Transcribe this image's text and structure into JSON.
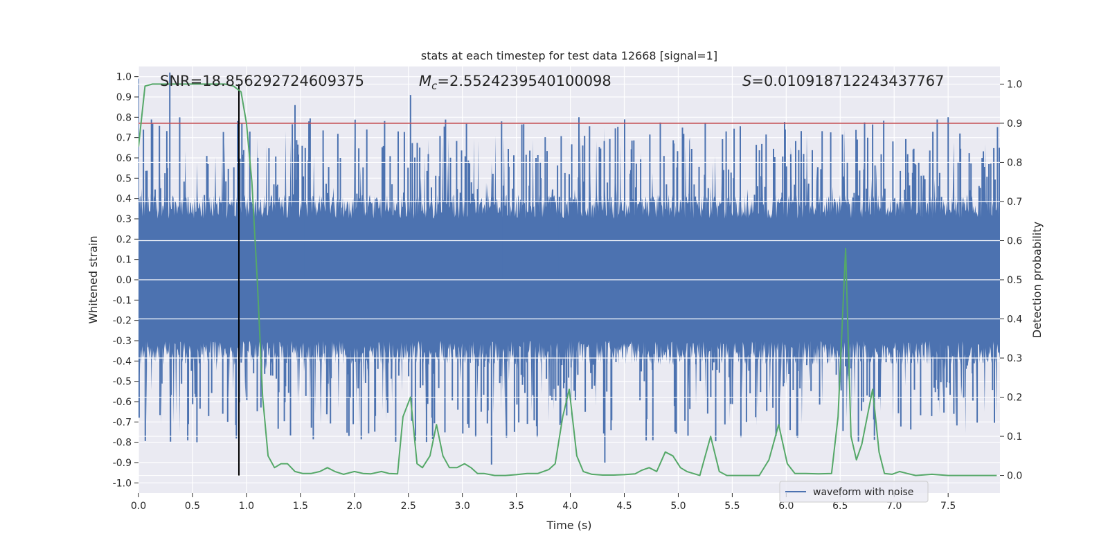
{
  "chart_data": {
    "type": "line",
    "title": "stats at each timestep for test data 12668 [signal=1]",
    "xlabel": "Time (s)",
    "ylabel": "Whitened strain",
    "y2label": "Detection probability",
    "xlim": [
      0.0,
      7.98
    ],
    "ylim": [
      -1.05,
      1.05
    ],
    "y2lim": [
      -0.045,
      1.045
    ],
    "x_ticks": [
      "0.0",
      "0.5",
      "1.0",
      "1.5",
      "2.0",
      "2.5",
      "3.0",
      "3.5",
      "4.0",
      "4.5",
      "5.0",
      "5.5",
      "6.0",
      "6.5",
      "7.0",
      "7.5"
    ],
    "y_ticks": [
      "1.0",
      "0.9",
      "0.8",
      "0.7",
      "0.6",
      "0.5",
      "0.4",
      "0.3",
      "0.2",
      "0.1",
      "0.0",
      "-0.1",
      "-0.2",
      "-0.3",
      "-0.4",
      "-0.5",
      "-0.6",
      "-0.7",
      "-0.8",
      "-0.9",
      "-1.0"
    ],
    "y2_ticks": [
      "1.0",
      "0.9",
      "0.8",
      "0.7",
      "0.6",
      "0.5",
      "0.4",
      "0.3",
      "0.2",
      "0.1",
      "0.0"
    ],
    "grid": true,
    "legend_position": "lower-right",
    "legend": [
      "waveform with noise"
    ],
    "annotations": {
      "snr": "SNR=18.856292724609375",
      "mc_symbol": "M",
      "mc_subscript": "c",
      "mc_value": "=2.5524239540100098",
      "s_symbol": "S",
      "s_value": "=0.010918712243437767"
    },
    "threshold_probability": 0.9,
    "vertical_marker_time": 0.93,
    "waveform_series": {
      "name": "waveform with noise",
      "color": "#4c72b0",
      "time_range": [
        0.0,
        7.98
      ],
      "typical_amplitude": 0.3,
      "notable_peaks": [
        {
          "x": 0.29,
          "y": 1.02
        },
        {
          "x": 0.0,
          "y": 0.99
        },
        {
          "x": 1.45,
          "y": 0.86
        },
        {
          "x": 2.52,
          "y": 0.91
        },
        {
          "x": 4.08,
          "y": 0.8
        },
        {
          "x": 7.5,
          "y": 0.8
        },
        {
          "x": 3.27,
          "y": -0.91
        },
        {
          "x": 4.32,
          "y": -0.9
        }
      ]
    },
    "probability_series": {
      "color": "#55a868",
      "x": [
        0.0,
        0.06,
        0.13,
        0.3,
        0.5,
        0.7,
        0.8,
        0.88,
        0.95,
        1.0,
        1.05,
        1.1,
        1.15,
        1.2,
        1.26,
        1.32,
        1.38,
        1.45,
        1.52,
        1.6,
        1.68,
        1.75,
        1.82,
        1.9,
        2.0,
        2.08,
        2.15,
        2.25,
        2.32,
        2.4,
        2.45,
        2.52,
        2.58,
        2.63,
        2.7,
        2.76,
        2.82,
        2.88,
        2.95,
        3.02,
        3.08,
        3.14,
        3.2,
        3.3,
        3.4,
        3.5,
        3.6,
        3.7,
        3.8,
        3.86,
        3.93,
        3.99,
        4.06,
        4.12,
        4.2,
        4.3,
        4.4,
        4.5,
        4.6,
        4.66,
        4.73,
        4.8,
        4.88,
        4.95,
        5.02,
        5.08,
        5.2,
        5.3,
        5.38,
        5.45,
        5.55,
        5.65,
        5.75,
        5.84,
        5.93,
        6.01,
        6.08,
        6.18,
        6.3,
        6.42,
        6.48,
        6.55,
        6.6,
        6.65,
        6.7,
        6.75,
        6.8,
        6.86,
        6.91,
        6.98,
        7.05,
        7.12,
        7.2,
        7.35,
        7.5,
        7.7,
        7.95
      ],
      "y": [
        0.84,
        0.995,
        1.0,
        1.0,
        1.0,
        1.0,
        1.0,
        0.995,
        0.98,
        0.9,
        0.75,
        0.5,
        0.2,
        0.05,
        0.02,
        0.03,
        0.03,
        0.01,
        0.005,
        0.005,
        0.01,
        0.02,
        0.01,
        0.003,
        0.01,
        0.005,
        0.004,
        0.01,
        0.005,
        0.004,
        0.15,
        0.2,
        0.03,
        0.02,
        0.05,
        0.13,
        0.05,
        0.02,
        0.02,
        0.03,
        0.02,
        0.005,
        0.005,
        0.0,
        0.0,
        0.002,
        0.005,
        0.005,
        0.015,
        0.03,
        0.15,
        0.22,
        0.05,
        0.01,
        0.003,
        0.001,
        0.001,
        0.002,
        0.004,
        0.013,
        0.02,
        0.01,
        0.06,
        0.05,
        0.02,
        0.01,
        0.0,
        0.1,
        0.01,
        0.0,
        0.0,
        0.0,
        0.0,
        0.04,
        0.13,
        0.03,
        0.005,
        0.005,
        0.004,
        0.005,
        0.15,
        0.58,
        0.1,
        0.04,
        0.08,
        0.15,
        0.22,
        0.06,
        0.005,
        0.003,
        0.01,
        0.005,
        0.0,
        0.003,
        0.0,
        0.0,
        0.0
      ]
    }
  }
}
